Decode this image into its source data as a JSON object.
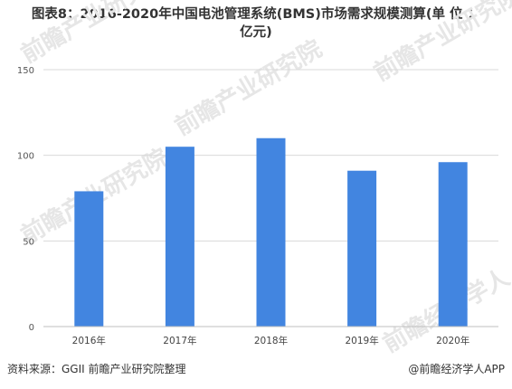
{
  "chart_data": {
    "type": "bar",
    "title_line1": "图表8：2016-2020年中国电池管理系统(BMS)市场需求规模测算(单 位 ：",
    "title_line2": "亿元)",
    "categories": [
      "2016年",
      "2017年",
      "2018年",
      "2019年",
      "2020年"
    ],
    "values": [
      79,
      105,
      110,
      91,
      96
    ],
    "ylim": [
      0,
      150
    ],
    "yticks": [
      0,
      50,
      100,
      150
    ],
    "grid": true,
    "bar_color": "#4285e0",
    "grid_color": "#d9d9d9"
  },
  "footer": {
    "source": "资料来源：GGII 前瞻产业研究院整理",
    "brand": "@前瞻经济学人APP"
  },
  "watermarks": [
    "前瞻产业研究院",
    "前瞻产业研究院",
    "前瞻产业研究院",
    "前瞻产业研究院",
    "前瞻经济学人"
  ]
}
